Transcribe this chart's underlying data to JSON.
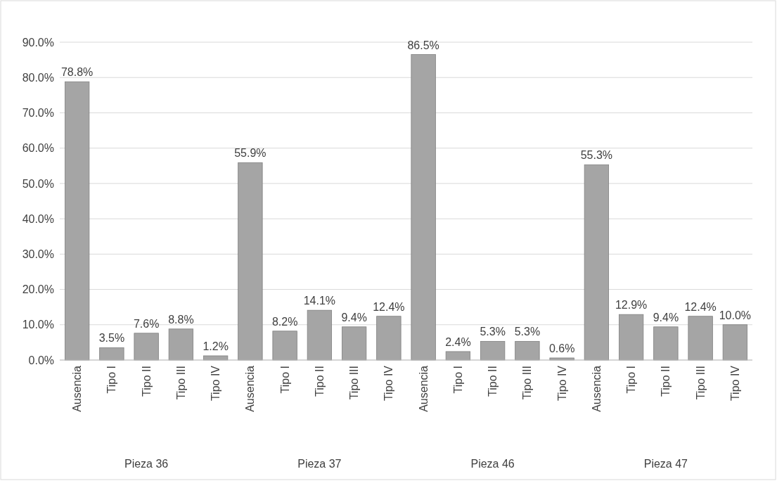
{
  "chart_data": {
    "type": "bar",
    "categories": [
      "Ausencia",
      "Tipo I",
      "Tipo II",
      "Tipo III",
      "Tipo IV",
      "Ausencia",
      "Tipo I",
      "Tipo II",
      "Tipo III",
      "Tipo IV",
      "Ausencia",
      "Tipo I",
      "Tipo II",
      "Tipo III",
      "Tipo IV",
      "Ausencia",
      "Tipo I",
      "Tipo II",
      "Tipo III",
      "Tipo IV"
    ],
    "values": [
      78.8,
      3.5,
      7.6,
      8.8,
      1.2,
      55.9,
      8.2,
      14.1,
      9.4,
      12.4,
      86.5,
      2.4,
      5.3,
      5.3,
      0.6,
      55.3,
      12.9,
      9.4,
      12.4,
      10.0
    ],
    "value_labels": [
      "78.8%",
      "3.5%",
      "7.6%",
      "8.8%",
      "1.2%",
      "55.9%",
      "8.2%",
      "14.1%",
      "9.4%",
      "12.4%",
      "86.5%",
      "2.4%",
      "5.3%",
      "5.3%",
      "0.6%",
      "55.3%",
      "12.9%",
      "9.4%",
      "12.4%",
      "10.0%"
    ],
    "color": "#a5a5a5",
    "ylim": [
      0,
      90
    ],
    "yticks": [
      {
        "value": 0,
        "label": "0.0%"
      },
      {
        "value": 10,
        "label": "10.0%"
      },
      {
        "value": 20,
        "label": "20.0%"
      },
      {
        "value": 30,
        "label": "30.0%"
      },
      {
        "value": 40,
        "label": "40.0%"
      },
      {
        "value": 50,
        "label": "50.0%"
      },
      {
        "value": 60,
        "label": "60.0%"
      },
      {
        "value": 70,
        "label": "70.0%"
      },
      {
        "value": 80,
        "label": "80.0%"
      },
      {
        "value": 90,
        "label": "90.0%"
      }
    ],
    "grid": true,
    "annotations": [
      "Pieza 36",
      "Pieza 37",
      "Pieza 46",
      "Pieza 47"
    ]
  }
}
